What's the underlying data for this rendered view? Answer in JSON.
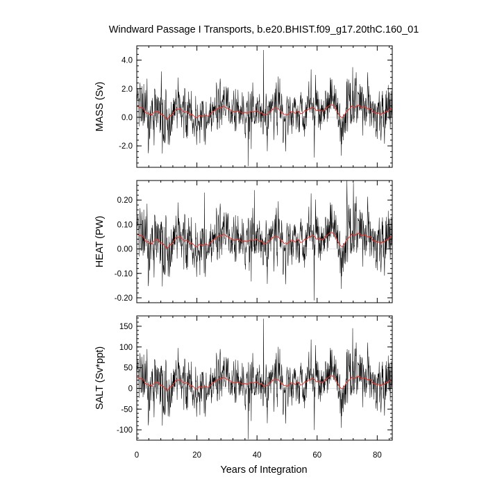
{
  "figure": {
    "title": "Windward Passage I Transports, b.e20.BHIST.f09_g17.20thC.160_01",
    "xlabel": "Years of Integration",
    "x_tick_labels": [
      "0",
      "20",
      "40",
      "60",
      "80"
    ],
    "colors": {
      "raw": "#000000",
      "smoothed": "#e8332a"
    }
  },
  "chart_data": [
    {
      "type": "line",
      "ylabel": "MASS (Sv)",
      "xlim": [
        0,
        85
      ],
      "ylim": [
        -3.5,
        5.0
      ],
      "y_ticks": [
        -2.0,
        0.0,
        2.0,
        4.0
      ],
      "y_tick_labels": [
        "-2.0",
        "0.0",
        "2.0",
        "4.0"
      ],
      "series": [
        {
          "style": "raw monthly",
          "color": "#000000",
          "mean": 0.38,
          "noise_sd": 0.85,
          "extremes": [
            [
              42.2,
              4.7
            ],
            [
              37.1,
              -3.4
            ],
            [
              71.8,
              3.5
            ],
            [
              59.1,
              -2.8
            ],
            [
              47.6,
              2.7
            ],
            [
              8.2,
              3.2
            ]
          ]
        },
        {
          "style": "smoothed",
          "color": "#e8332a"
        }
      ]
    },
    {
      "type": "line",
      "ylabel": "HEAT (PW)",
      "xlim": [
        0,
        85
      ],
      "ylim": [
        -0.22,
        0.28
      ],
      "y_ticks": [
        -0.2,
        -0.1,
        0.0,
        0.1,
        0.2
      ],
      "y_tick_labels": [
        "-0.20",
        "-0.10",
        "0.00",
        "0.10",
        "0.20"
      ],
      "series": [
        {
          "style": "raw monthly",
          "color": "#000000",
          "mean": 0.035,
          "noise_sd": 0.055,
          "extremes": [
            [
              69.9,
              0.28
            ],
            [
              72.1,
              0.27
            ],
            [
              59.0,
              -0.21
            ],
            [
              39.2,
              0.24
            ],
            [
              22.5,
              0.23
            ]
          ]
        },
        {
          "style": "smoothed",
          "color": "#e8332a"
        }
      ]
    },
    {
      "type": "line",
      "ylabel": "SALT (Sv*ppt)",
      "xlim": [
        0,
        85
      ],
      "ylim": [
        -125,
        175
      ],
      "y_ticks": [
        -100,
        -50,
        0,
        50,
        100,
        150
      ],
      "y_tick_labels": [
        "-100",
        "-50",
        "0",
        "50",
        "100",
        "150"
      ],
      "series": [
        {
          "style": "raw monthly",
          "color": "#000000",
          "mean": 13,
          "noise_sd": 30,
          "extremes": [
            [
              42.2,
              168
            ],
            [
              37.1,
              -122
            ],
            [
              71.8,
              145
            ],
            [
              59.1,
              -100
            ],
            [
              47.6,
              95
            ]
          ]
        },
        {
          "style": "smoothed",
          "color": "#e8332a"
        }
      ]
    }
  ]
}
